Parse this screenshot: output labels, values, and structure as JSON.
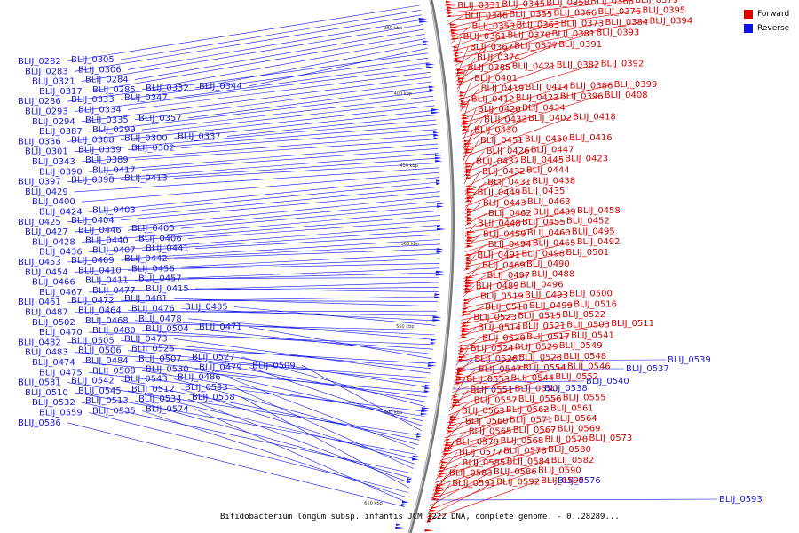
{
  "caption": "Bifidobacterium longum subsp. infantis JCM 1222 DNA, complete genome. - 0..28289...",
  "legend": [
    {
      "label": "Forward",
      "color": "#e00000"
    },
    {
      "label": "Reverse",
      "color": "#1010ee"
    }
  ],
  "ticks": [
    "350 kbp",
    "400 kbp",
    "450 kbp",
    "500 kbp",
    "550 kbp",
    "600 kbp",
    "650 kbp"
  ],
  "forward_labels": [
    "BLIJ_0331",
    "BLIJ_0345",
    "BLIJ_0358",
    "BLIJ_0368",
    "BLIJ_0379",
    "BLIJ_0346",
    "BLIJ_0355",
    "BLIJ_0366",
    "BLIJ_0376",
    "BLIJ_0395",
    "BLIJ_0353",
    "BLIJ_0363",
    "BLIJ_0373",
    "BLIJ_0384",
    "BLIJ_0394",
    "BLIJ_0361",
    "BLIJ_0370",
    "BLIJ_0381",
    "BLIJ_0393",
    "BLIJ_0367",
    "BLIJ_0377",
    "BLIJ_0391",
    "BLIJ_0374",
    "BLIJ_0385",
    "BLIJ_0421",
    "BLIJ_0382",
    "BLIJ_0392",
    "BLIJ_0401",
    "BLIJ_0419",
    "BLIJ_0414",
    "BLIJ_0386",
    "BLIJ_0399",
    "BLIJ_0412",
    "BLIJ_0422",
    "BLIJ_0396",
    "BLIJ_0408",
    "BLIJ_0420",
    "BLIJ_0434",
    "BLIJ_0433",
    "BLIJ_0402",
    "BLIJ_0418",
    "BLIJ_0430",
    "BLIJ_0451",
    "BLIJ_0450",
    "BLIJ_0416",
    "BLIJ_0426",
    "BLIJ_0447",
    "BLIJ_0437",
    "BLIJ_0445",
    "BLIJ_0423",
    "BLIJ_0432",
    "BLIJ_0444",
    "BLIJ_0431",
    "BLIJ_0438",
    "BLIJ_0449",
    "BLIJ_0435",
    "BLIJ_0443",
    "BLIJ_0463",
    "BLIJ_0462",
    "BLIJ_0439",
    "BLIJ_0458",
    "BLIJ_0448",
    "BLIJ_0455",
    "BLIJ_0452",
    "BLIJ_0459",
    "BLIJ_0460",
    "BLIJ_0495",
    "BLIJ_0494",
    "BLIJ_0465",
    "BLIJ_0492",
    "BLIJ_0491",
    "BLIJ_0498",
    "BLIJ_0501",
    "BLIJ_0469",
    "BLIJ_0490",
    "BLIJ_0497",
    "BLIJ_0488",
    "BLIJ_0489",
    "BLIJ_0496",
    "BLIJ_0519",
    "BLIJ_0493",
    "BLIJ_0500",
    "BLIJ_0518",
    "BLIJ_0499",
    "BLIJ_0516",
    "BLIJ_0523",
    "BLIJ_0515",
    "BLIJ_0522",
    "BLIJ_0514",
    "BLIJ_0521",
    "BLIJ_0503",
    "BLIJ_0511",
    "BLIJ_0520",
    "BLIJ_0517",
    "BLIJ_0541",
    "BLIJ_0524",
    "BLIJ_0529",
    "BLIJ_0549",
    "BLIJ_0526",
    "BLIJ_0528",
    "BLIJ_0548",
    "BLIJ_0547",
    "BLIJ_0554",
    "BLIJ_0546",
    "BLIJ_0553",
    "BLIJ_0544",
    "BLIJ_0552",
    "BLIJ_0551",
    "BLIJ_0550",
    "BLIJ_0557",
    "BLIJ_0556",
    "BLIJ_0555",
    "BLIJ_0563",
    "BLIJ_0562",
    "BLIJ_0561",
    "BLIJ_0560",
    "BLIJ_0571",
    "BLIJ_0564",
    "BLIJ_0565",
    "BLIJ_0567",
    "BLIJ_0569",
    "BLIJ_0579",
    "BLIJ_0568",
    "BLIJ_0570",
    "BLIJ_0573",
    "BLIJ_0577",
    "BLIJ_0578",
    "BLIJ_0580",
    "BLIJ_0585",
    "BLIJ_0584",
    "BLIJ_0582",
    "BLIJ_0583",
    "BLIJ_0586",
    "BLIJ_0590",
    "BLIJ_0591",
    "BLIJ_0592",
    "BLIJ_0595"
  ],
  "reverse_labels": [
    "BLIJ_0282",
    "BLIJ_0305",
    "BLIJ_0283",
    "BLIJ_0306",
    "BLIJ_0321",
    "BLIJ_0284",
    "BLIJ_0317",
    "BLIJ_0285",
    "BLIJ_0332",
    "BLIJ_0344",
    "BLIJ_0286",
    "BLIJ_0333",
    "BLIJ_0347",
    "BLIJ_0293",
    "BLIJ_0334",
    "BLIJ_0294",
    "BLIJ_0335",
    "BLIJ_0357",
    "BLIJ_0387",
    "BLIJ_0299",
    "BLIJ_0336",
    "BLIJ_0388",
    "BLIJ_0300",
    "BLIJ_0337",
    "BLIJ_0301",
    "BLIJ_0339",
    "BLIJ_0302",
    "BLIJ_0343",
    "BLIJ_0389",
    "BLIJ_0390",
    "BLIJ_0417",
    "BLIJ_0397",
    "BLIJ_0398",
    "BLIJ_0413",
    "BLIJ_0429",
    "BLIJ_0400",
    "BLIJ_0424",
    "BLIJ_0403",
    "BLIJ_0425",
    "BLIJ_0404",
    "BLIJ_0427",
    "BLIJ_0446",
    "BLIJ_0405",
    "BLIJ_0428",
    "BLIJ_0440",
    "BLIJ_0406",
    "BLIJ_0436",
    "BLIJ_0407",
    "BLIJ_0441",
    "BLIJ_0453",
    "BLIJ_0409",
    "BLIJ_0442",
    "BLIJ_0454",
    "BLIJ_0410",
    "BLIJ_0456",
    "BLIJ_0466",
    "BLIJ_0411",
    "BLIJ_0457",
    "BLIJ_0467",
    "BLIJ_0477",
    "BLIJ_0415",
    "BLIJ_0461",
    "BLIJ_0472",
    "BLIJ_0481",
    "BLIJ_0487",
    "BLIJ_0464",
    "BLIJ_0476",
    "BLIJ_0485",
    "BLIJ_0502",
    "BLIJ_0468",
    "BLIJ_0478",
    "BLIJ_0470",
    "BLIJ_0480",
    "BLIJ_0504",
    "BLIJ_0471",
    "BLIJ_0482",
    "BLIJ_0505",
    "BLIJ_0473",
    "BLIJ_0483",
    "BLIJ_0506",
    "BLIJ_0525",
    "BLIJ_0474",
    "BLIJ_0484",
    "BLIJ_0507",
    "BLIJ_0527",
    "BLIJ_0475",
    "BLIJ_0508",
    "BLIJ_0530",
    "BLIJ_0479",
    "BLIJ_0509",
    "BLIJ_0531",
    "BLIJ_0542",
    "BLIJ_0543",
    "BLIJ_0486",
    "BLIJ_0510",
    "BLIJ_0545",
    "BLIJ_0512",
    "BLIJ_0533",
    "BLIJ_0532",
    "BLIJ_0513",
    "BLIJ_0534",
    "BLIJ_0558",
    "BLIJ_0559",
    "BLIJ_0535",
    "BLIJ_0574",
    "BLIJ_0536",
    "BLIJ_0537",
    "BLIJ_0539",
    "BLIJ_0538",
    "BLIJ_0540",
    "BLIJ_0576",
    "BLIJ_0593"
  ]
}
